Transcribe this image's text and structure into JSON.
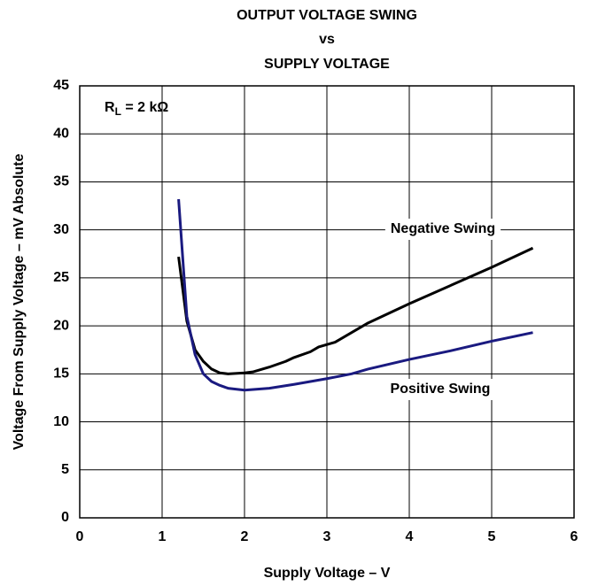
{
  "chart_data": {
    "type": "line",
    "title": [
      "OUTPUT VOLTAGE SWING",
      "vs",
      "SUPPLY VOLTAGE"
    ],
    "x_label": "Supply Voltage – V",
    "y_label": "Voltage From Supply Voltage – mV Absolute",
    "annotation": {
      "base": "R",
      "sub": "L",
      "rest": " = 2 kΩ"
    },
    "xlim": [
      0,
      6
    ],
    "xticks": [
      0,
      1,
      2,
      3,
      4,
      5,
      6
    ],
    "ylim": [
      0,
      45
    ],
    "yticks": [
      0,
      5,
      10,
      15,
      20,
      25,
      30,
      35,
      40,
      45
    ],
    "grid": true,
    "series": [
      {
        "name": "Negative Swing",
        "color": "#000000",
        "x": [
          1.2,
          1.3,
          1.4,
          1.5,
          1.6,
          1.7,
          1.8,
          2.0,
          2.1,
          2.3,
          2.5,
          2.6,
          2.8,
          2.9,
          3.1,
          3.5,
          4.0,
          4.5,
          5.0,
          5.5
        ],
        "values": [
          27.2,
          20.5,
          17.5,
          16.3,
          15.5,
          15.1,
          15.0,
          15.1,
          15.2,
          15.7,
          16.3,
          16.7,
          17.3,
          17.8,
          18.3,
          20.3,
          22.3,
          24.2,
          26.1,
          28.1
        ]
      },
      {
        "name": "Positive Swing",
        "color": "#1a1a80",
        "x": [
          1.2,
          1.3,
          1.4,
          1.5,
          1.6,
          1.7,
          1.8,
          2.0,
          2.3,
          2.6,
          3.0,
          3.3,
          3.5,
          4.0,
          4.5,
          5.0,
          5.5
        ],
        "values": [
          33.2,
          21.0,
          17.0,
          15.0,
          14.2,
          13.8,
          13.5,
          13.3,
          13.5,
          13.9,
          14.5,
          15.0,
          15.5,
          16.5,
          17.4,
          18.4,
          19.3
        ]
      }
    ]
  }
}
